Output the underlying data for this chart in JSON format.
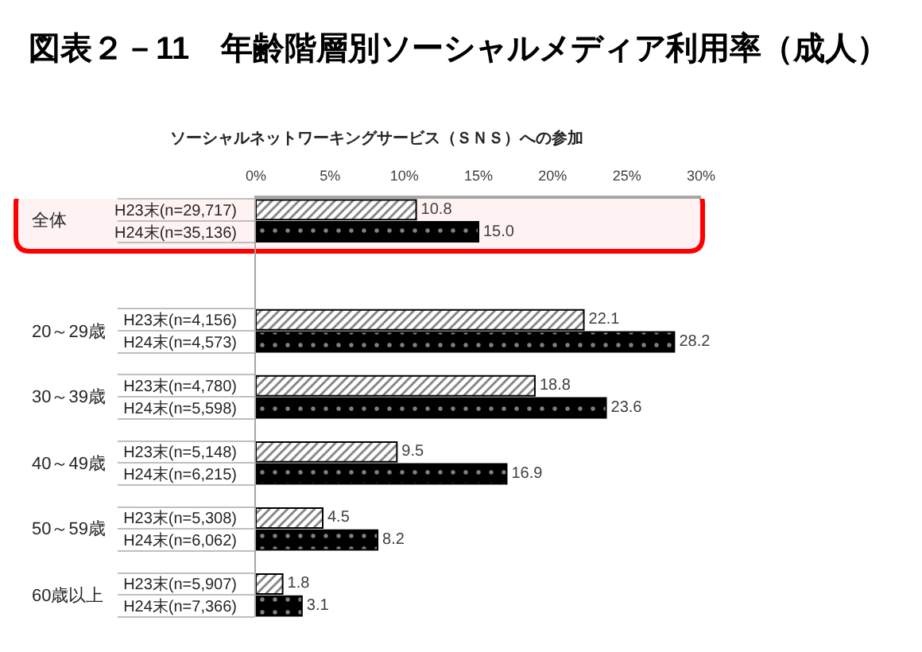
{
  "chart_data": {
    "type": "bar",
    "orientation": "horizontal",
    "title": "図表２－11　年齢階層別ソーシャルメディア利用率（成人）",
    "subtitle": "ソーシャルネットワーキングサービス（ＳＮＳ）への参加",
    "categories": [
      "H23末(n=29,717)",
      "H24末(n=35,136)",
      null,
      null,
      null,
      "H23末(n=4,156)",
      "H24末(n=4,573)",
      null,
      "H23末(n=4,780)",
      "H24末(n=5,598)",
      null,
      "H23末(n=5,148)",
      "H24末(n=6,215)",
      null,
      "H23末(n=5,308)",
      "H24末(n=6,062)",
      null,
      "H23末(n=5,907)",
      "H24末(n=7,366)"
    ],
    "series": [
      {
        "color": "#000000",
        "values": [
          10.8,
          null,
          null,
          null,
          null,
          22.1,
          null,
          null,
          18.8,
          null,
          null,
          9.5,
          null,
          null,
          4.5,
          null,
          null,
          1.8,
          null
        ],
        "value_labels": [
          "10.8",
          null,
          null,
          null,
          null,
          "22.1",
          null,
          null,
          "18.8",
          null,
          null,
          "9.5",
          null,
          null,
          "4.5",
          null,
          null,
          "1.8",
          null
        ]
      },
      {
        "color": "#000000",
        "values": [
          null,
          15.0,
          null,
          null,
          null,
          null,
          28.2,
          null,
          null,
          23.6,
          null,
          null,
          16.9,
          null,
          null,
          8.2,
          null,
          null,
          3.1
        ],
        "value_labels": [
          null,
          "15.0",
          null,
          null,
          null,
          null,
          "28.2",
          null,
          null,
          "23.6",
          null,
          null,
          "16.9",
          null,
          null,
          "8.2",
          null,
          null,
          "3.1"
        ]
      }
    ],
    "xlim": [
      0,
      30
    ],
    "xticks": [
      {
        "value": 0,
        "label": "0%"
      },
      {
        "value": 5,
        "label": "5%"
      },
      {
        "value": 10,
        "label": "10%"
      },
      {
        "value": 15,
        "label": "15%"
      },
      {
        "value": 20,
        "label": "20%"
      },
      {
        "value": 25,
        "label": "25%"
      },
      {
        "value": 30,
        "label": "30%"
      }
    ],
    "annotations": [
      "全体",
      "20～29歳",
      "30～39歳",
      "40～49歳",
      "50～59歳",
      "60歳以上"
    ],
    "bands": [
      {
        "axis": "y",
        "from": "H23末(n=29,717)",
        "to": "H24末(n=35,136)",
        "color": "#ff0000"
      }
    ]
  }
}
